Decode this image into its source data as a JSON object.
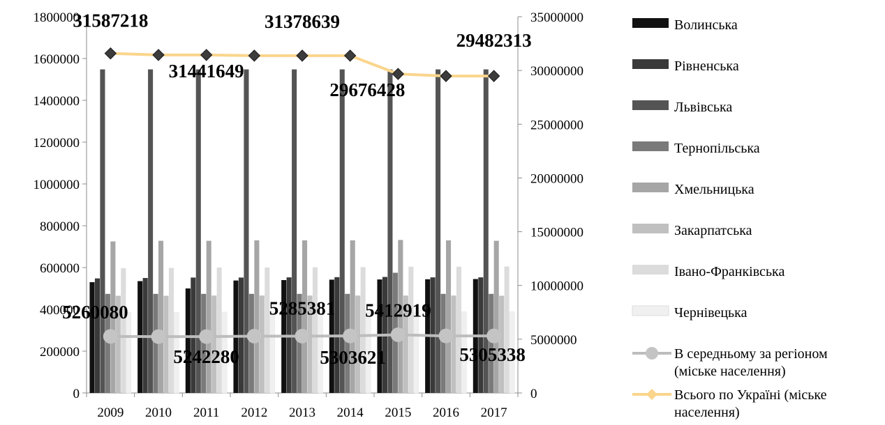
{
  "chart_data": {
    "type": "bar",
    "categories": [
      "2009",
      "2010",
      "2011",
      "2012",
      "2013",
      "2014",
      "2015",
      "2016",
      "2017"
    ],
    "y_left": {
      "min": 0,
      "max": 1800000,
      "step": 200000
    },
    "y_right": {
      "min": 0,
      "max": 35000000,
      "step": 5000000
    },
    "legend_position": "right",
    "grid": false,
    "series": [
      {
        "name": "Волинська",
        "kind": "bar",
        "axis": "left",
        "color": "#111111",
        "values": [
          530000,
          535000,
          500000,
          538000,
          540000,
          542000,
          543000,
          544000,
          545000
        ]
      },
      {
        "name": "Рівненська",
        "kind": "bar",
        "axis": "left",
        "color": "#3a3a3a",
        "values": [
          548000,
          550000,
          552000,
          552000,
          553000,
          554000,
          555000,
          553000,
          553000
        ]
      },
      {
        "name": "Львівська",
        "kind": "bar",
        "axis": "left",
        "color": "#545454",
        "values": [
          1548000,
          1548000,
          1548000,
          1548000,
          1548000,
          1548000,
          1548000,
          1548000,
          1548000
        ]
      },
      {
        "name": "Тернопільська",
        "kind": "bar",
        "axis": "left",
        "color": "#7a7a7a",
        "values": [
          474000,
          474000,
          474000,
          474000,
          474000,
          474000,
          575000,
          474000,
          474000
        ]
      },
      {
        "name": "Хмельницька",
        "kind": "bar",
        "axis": "left",
        "color": "#a6a6a6",
        "values": [
          725000,
          728000,
          728000,
          730000,
          730000,
          730000,
          732000,
          730000,
          728000
        ]
      },
      {
        "name": "Закарпатська",
        "kind": "bar",
        "axis": "left",
        "color": "#c0c0c0",
        "values": [
          465000,
          465000,
          466000,
          466000,
          466000,
          466000,
          466000,
          466000,
          465000
        ]
      },
      {
        "name": "Івано-Франківська",
        "kind": "bar",
        "axis": "left",
        "color": "#dcdcdc",
        "values": [
          597000,
          598000,
          600000,
          600000,
          601000,
          602000,
          604000,
          604000,
          605000
        ]
      },
      {
        "name": "Чернівецька",
        "kind": "bar",
        "axis": "left",
        "color": "#f0f0f0",
        "values": [
          386000,
          386000,
          387000,
          387000,
          388000,
          388000,
          388000,
          389000,
          389000
        ]
      },
      {
        "name": "В середньому за регіоном (міське населення)",
        "kind": "line",
        "axis": "right",
        "color": "#bdbdbd",
        "marker": "circle",
        "values": [
          5260080,
          5242280,
          5242280,
          5285381,
          5285381,
          5303621,
          5412919,
          5305338,
          5305338
        ]
      },
      {
        "name": "Всього по Україні (міське населення)",
        "kind": "line",
        "axis": "right",
        "color": "#fad58c",
        "marker": "diamond",
        "values": [
          31587218,
          31441649,
          31441649,
          31378639,
          31378639,
          31378639,
          29676428,
          29482313,
          29482313
        ]
      }
    ],
    "data_labels": [
      {
        "text": "31587218",
        "series": 9,
        "index": 0
      },
      {
        "text": "31441649",
        "series": 9,
        "index": 2
      },
      {
        "text": "31378639",
        "series": 9,
        "index": 4
      },
      {
        "text": "29676428",
        "series": 9,
        "index": 6
      },
      {
        "text": "29482313",
        "series": 9,
        "index": 8
      },
      {
        "text": "5260080",
        "series": 8,
        "index": 0
      },
      {
        "text": "5242280",
        "series": 8,
        "index": 2
      },
      {
        "text": "5285381",
        "series": 8,
        "index": 4
      },
      {
        "text": "5303621",
        "series": 8,
        "index": 5
      },
      {
        "text": "5412919",
        "series": 8,
        "index": 6
      },
      {
        "text": "5305338",
        "series": 8,
        "index": 8
      }
    ]
  }
}
